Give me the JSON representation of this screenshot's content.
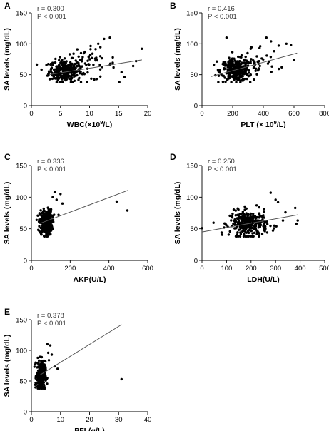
{
  "chart_data": [
    {
      "panel": "A",
      "type": "scatter",
      "stats": [
        "r = 0.300",
        "P < 0.001"
      ],
      "xlabel_main": "WBC(×10",
      "xlabel_sup": "9",
      "xlabel_end": "/L)",
      "ylabel": "SA levels (mg/dL)",
      "xlim": [
        0,
        20
      ],
      "ylim": [
        0,
        150
      ],
      "xticks": [
        0,
        5,
        10,
        15,
        20
      ],
      "yticks": [
        0,
        50,
        100,
        150
      ],
      "fit": {
        "x": [
          3,
          19
        ],
        "y": [
          50,
          74
        ]
      },
      "clusters": [
        {
          "cx": 5.8,
          "sx": 1.4,
          "cy": 56,
          "sy": 9,
          "n": 280
        },
        {
          "cx": 9.5,
          "sx": 2.5,
          "cy": 66,
          "sy": 13,
          "n": 60
        }
      ],
      "points": [
        [
          12.5,
          108
        ],
        [
          13.5,
          110
        ],
        [
          19,
          92
        ],
        [
          17.5,
          64
        ],
        [
          16,
          46
        ],
        [
          15.5,
          54
        ],
        [
          14,
          78
        ],
        [
          11.5,
          100
        ],
        [
          10.5,
          84
        ],
        [
          18,
          72
        ]
      ]
    },
    {
      "panel": "B",
      "type": "scatter",
      "stats": [
        "r = 0.416",
        "P < 0.001"
      ],
      "xlabel_main": "PLT (× 10",
      "xlabel_sup": "9",
      "xlabel_end": "/L)",
      "ylabel": "SA levels (mg/dL)",
      "xlim": [
        0,
        800
      ],
      "ylim": [
        0,
        150
      ],
      "xticks": [
        0,
        200,
        400,
        600,
        800
      ],
      "yticks": [
        0,
        50,
        100,
        150
      ],
      "fit": {
        "x": [
          60,
          620
        ],
        "y": [
          47,
          85
        ]
      },
      "clusters": [
        {
          "cx": 220,
          "sx": 50,
          "cy": 57,
          "sy": 9,
          "n": 300
        },
        {
          "cx": 330,
          "sx": 80,
          "cy": 68,
          "sy": 14,
          "n": 50
        }
      ],
      "points": [
        [
          600,
          74
        ],
        [
          550,
          100
        ],
        [
          580,
          98
        ],
        [
          500,
          97
        ],
        [
          420,
          110
        ],
        [
          470,
          88
        ],
        [
          520,
          62
        ],
        [
          450,
          104
        ],
        [
          160,
          110
        ],
        [
          380,
          96
        ]
      ]
    },
    {
      "panel": "C",
      "type": "scatter",
      "stats": [
        "r = 0.336",
        "P < 0.001"
      ],
      "xlabel": "AKP(U/L)",
      "ylabel": "SA levels (mg/dL)",
      "xlim": [
        0,
        600
      ],
      "ylim": [
        0,
        150
      ],
      "xticks": [
        0,
        200,
        400,
        600
      ],
      "yticks": [
        0,
        50,
        100,
        150
      ],
      "fit": {
        "x": [
          40,
          500
        ],
        "y": [
          58,
          111
        ]
      },
      "clusters": [
        {
          "cx": 75,
          "sx": 16,
          "cy": 60,
          "sy": 10,
          "n": 320
        }
      ],
      "points": [
        [
          440,
          93
        ],
        [
          495,
          79
        ],
        [
          120,
          108
        ],
        [
          150,
          105
        ],
        [
          160,
          90
        ],
        [
          140,
          72
        ],
        [
          130,
          96
        ],
        [
          110,
          100
        ]
      ]
    },
    {
      "panel": "D",
      "type": "scatter",
      "stats": [
        "r = 0.250",
        "P < 0.001"
      ],
      "xlabel": "LDH(U/L)",
      "ylabel": "SA levels (mg/dL)",
      "xlim": [
        0,
        500
      ],
      "ylim": [
        0,
        150
      ],
      "xticks": [
        0,
        100,
        200,
        300,
        400,
        500
      ],
      "yticks": [
        0,
        50,
        100,
        150
      ],
      "fit": {
        "x": [
          0,
          390
        ],
        "y": [
          45,
          72
        ]
      },
      "clusters": [
        {
          "cx": 190,
          "sx": 38,
          "cy": 58,
          "sy": 10,
          "n": 320
        }
      ],
      "points": [
        [
          0,
          51
        ],
        [
          80,
          44
        ],
        [
          380,
          83
        ],
        [
          390,
          63
        ],
        [
          385,
          58
        ],
        [
          340,
          76
        ],
        [
          330,
          63
        ],
        [
          310,
          92
        ],
        [
          280,
          107
        ],
        [
          300,
          96
        ]
      ]
    },
    {
      "panel": "E",
      "type": "scatter",
      "stats": [
        "r = 0.378",
        "P < 0.001"
      ],
      "xlabel": "PFL(g/L)",
      "ylabel": "SA levels (mg/dL)",
      "xlim": [
        0,
        40
      ],
      "ylim": [
        0,
        150
      ],
      "xticks": [
        0,
        10,
        20,
        30,
        40
      ],
      "yticks": [
        0,
        50,
        100,
        150
      ],
      "fit": {
        "x": [
          3,
          31
        ],
        "y": [
          60,
          142
        ]
      },
      "clusters": [
        {
          "cx": 3.3,
          "sx": 0.75,
          "cy": 58,
          "sy": 12,
          "n": 300
        }
      ],
      "points": [
        [
          31,
          53
        ],
        [
          6.5,
          108
        ],
        [
          5.5,
          110
        ],
        [
          7,
          93
        ],
        [
          6,
          84
        ],
        [
          8,
          74
        ],
        [
          9,
          70
        ],
        [
          5.8,
          96
        ]
      ]
    }
  ]
}
